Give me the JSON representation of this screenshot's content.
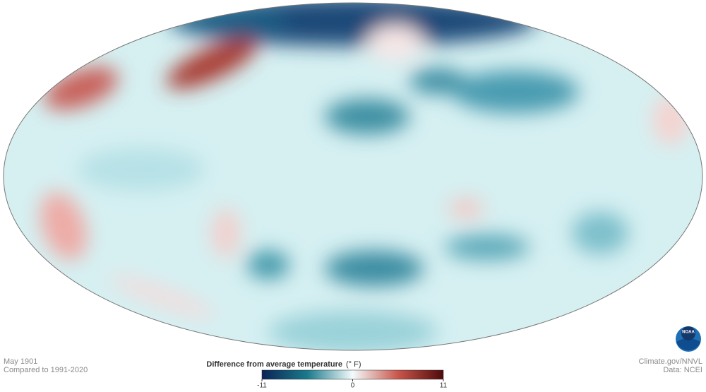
{
  "map": {
    "date": "May 1901",
    "baseline": "Compared to 1991-2020"
  },
  "credits": {
    "source": "Climate.gov/NNVL",
    "data": "Data: NCEI",
    "logo": "NOAA"
  },
  "legend": {
    "title": "Difference from average temperature",
    "unit": "(° F)",
    "range": [
      -11,
      11
    ],
    "ticks": [
      -11,
      0,
      11
    ],
    "colors": [
      "#0b2456",
      "#1a7a8c",
      "#f3fbfb",
      "#c9564c",
      "#4f0a0a"
    ]
  }
}
